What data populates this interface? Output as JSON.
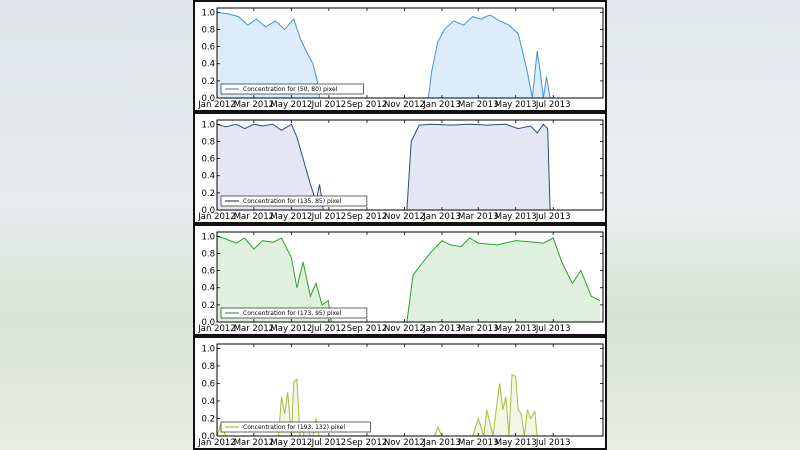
{
  "chart_data": [
    {
      "type": "area",
      "legend": "Concentration for (50, 80) pixel",
      "legend_placement": "bottom-left",
      "line_color": "#4a90d9",
      "fill_color": "#dcecfa",
      "ylim": [
        0,
        1.05
      ],
      "xlim": [
        "2012-01-01",
        "2013-09-20"
      ],
      "yticks": [
        "0.0",
        "0.2",
        "0.4",
        "0.6",
        "0.8",
        "1.0"
      ],
      "xticks": [
        "Jan 2012",
        "Mar 2012",
        "May 2012",
        "Jul 2012",
        "Sep 2012",
        "Nov 2012",
        "Jan 2013",
        "Mar 2013",
        "May 2013",
        "Jul 2013"
      ],
      "x": [
        "2012-01-01",
        "2012-01-20",
        "2012-02-05",
        "2012-02-20",
        "2012-03-05",
        "2012-03-20",
        "2012-04-05",
        "2012-04-20",
        "2012-05-05",
        "2012-05-15",
        "2012-05-25",
        "2012-06-05",
        "2012-06-12",
        "2012-06-16",
        "2012-12-10",
        "2012-12-15",
        "2012-12-25",
        "2013-01-05",
        "2013-01-20",
        "2013-02-05",
        "2013-02-20",
        "2013-03-05",
        "2013-03-20",
        "2013-04-05",
        "2013-04-20",
        "2013-05-05",
        "2013-05-12",
        "2013-05-20",
        "2013-05-28",
        "2013-06-05",
        "2013-06-10",
        "2013-06-15",
        "2013-06-20",
        "2013-06-26"
      ],
      "values": [
        1.0,
        0.98,
        0.95,
        0.85,
        0.92,
        0.83,
        0.9,
        0.8,
        0.92,
        0.7,
        0.55,
        0.4,
        0.2,
        0.0,
        0.0,
        0.3,
        0.65,
        0.8,
        0.9,
        0.85,
        0.95,
        0.92,
        0.97,
        0.9,
        0.85,
        0.75,
        0.55,
        0.3,
        0.0,
        0.55,
        0.3,
        0.0,
        0.25,
        0.0
      ]
    },
    {
      "type": "area",
      "legend": "Concentration for (135, 85) pixel",
      "legend_placement": "bottom-left",
      "line_color": "#2d4d7a",
      "fill_color": "#e4e7f3",
      "ylim": [
        0,
        1.05
      ],
      "xlim": [
        "2012-01-01",
        "2013-09-20"
      ],
      "yticks": [
        "0.0",
        "0.2",
        "0.4",
        "0.6",
        "0.8",
        "1.0"
      ],
      "xticks": [
        "Jan 2012",
        "Mar 2012",
        "May 2012",
        "Jul 2012",
        "Sep 2012",
        "Nov 2012",
        "Jan 2013",
        "Mar 2013",
        "May 2013",
        "Jul 2013"
      ],
      "x": [
        "2012-01-01",
        "2012-01-15",
        "2012-02-01",
        "2012-02-15",
        "2012-03-01",
        "2012-03-15",
        "2012-04-01",
        "2012-04-15",
        "2012-05-01",
        "2012-05-10",
        "2012-05-20",
        "2012-06-01",
        "2012-06-10",
        "2012-06-16",
        "2012-06-22",
        "2012-11-05",
        "2012-11-12",
        "2012-11-25",
        "2012-12-15",
        "2013-01-15",
        "2013-02-15",
        "2013-03-15",
        "2013-04-15",
        "2013-05-05",
        "2013-05-25",
        "2013-06-05",
        "2013-06-15",
        "2013-06-22",
        "2013-06-26"
      ],
      "values": [
        1.0,
        0.97,
        1.0,
        0.95,
        1.0,
        0.98,
        1.0,
        0.93,
        1.0,
        0.85,
        0.6,
        0.3,
        0.1,
        0.3,
        0.0,
        0.0,
        0.8,
        0.99,
        1.0,
        0.99,
        1.0,
        0.99,
        1.0,
        0.95,
        0.98,
        0.9,
        1.0,
        0.95,
        0.0
      ]
    },
    {
      "type": "area",
      "legend": "Concentration for (173, 95) pixel",
      "legend_placement": "bottom-left",
      "line_color": "#2ca02c",
      "fill_color": "#e0f0df",
      "ylim": [
        0,
        1.05
      ],
      "xlim": [
        "2012-01-01",
        "2013-09-20"
      ],
      "yticks": [
        "0.0",
        "0.2",
        "0.4",
        "0.6",
        "0.8",
        "1.0"
      ],
      "xticks": [
        "Jan 2012",
        "Mar 2012",
        "May 2012",
        "Jul 2012",
        "Sep 2012",
        "Nov 2012",
        "Jan 2013",
        "Mar 2013",
        "May 2013",
        "Jul 2013"
      ],
      "x": [
        "2012-01-01",
        "2012-01-15",
        "2012-02-01",
        "2012-02-15",
        "2012-03-01",
        "2012-03-15",
        "2012-04-01",
        "2012-04-15",
        "2012-05-01",
        "2012-05-10",
        "2012-05-20",
        "2012-06-01",
        "2012-06-10",
        "2012-06-20",
        "2012-06-30",
        "2012-07-05",
        "2012-11-05",
        "2012-11-15",
        "2012-12-01",
        "2012-12-15",
        "2013-01-01",
        "2013-01-15",
        "2013-02-01",
        "2013-02-15",
        "2013-03-01",
        "2013-04-01",
        "2013-05-01",
        "2013-06-01",
        "2013-06-15",
        "2013-07-01",
        "2013-07-15",
        "2013-08-01",
        "2013-08-15",
        "2013-09-01",
        "2013-09-15"
      ],
      "values": [
        1.0,
        0.97,
        0.92,
        0.98,
        0.85,
        0.95,
        0.93,
        0.98,
        0.75,
        0.4,
        0.7,
        0.3,
        0.45,
        0.2,
        0.25,
        0.0,
        0.0,
        0.55,
        0.7,
        0.82,
        0.95,
        0.9,
        0.88,
        0.98,
        0.92,
        0.9,
        0.95,
        0.93,
        0.92,
        0.98,
        0.7,
        0.45,
        0.6,
        0.3,
        0.25
      ]
    },
    {
      "type": "area",
      "legend": "Concentration for (193, 132) pixel",
      "legend_placement": "bottom-left",
      "line_color": "#a6bd3a",
      "fill_color": "#f3f6e3",
      "ylim": [
        0,
        1.05
      ],
      "xlim": [
        "2012-01-01",
        "2013-09-20"
      ],
      "yticks": [
        "0.0",
        "0.2",
        "0.4",
        "0.6",
        "0.8",
        "1.0"
      ],
      "xticks": [
        "Jan 2012",
        "Mar 2012",
        "May 2012",
        "Jul 2012",
        "Sep 2012",
        "Nov 2012",
        "Jan 2013",
        "Mar 2013",
        "May 2013",
        "Jul 2013"
      ],
      "x": [
        "2012-01-01",
        "2012-01-08",
        "2012-01-15",
        "2012-01-22",
        "2012-04-10",
        "2012-04-15",
        "2012-04-20",
        "2012-04-25",
        "2012-05-01",
        "2012-05-05",
        "2012-05-10",
        "2012-05-15",
        "2012-05-20",
        "2012-05-25",
        "2012-06-01",
        "2012-06-05",
        "2012-06-10",
        "2012-06-15",
        "2012-12-20",
        "2012-12-25",
        "2013-01-01",
        "2013-02-20",
        "2013-03-01",
        "2013-03-10",
        "2013-03-15",
        "2013-03-25",
        "2013-04-01",
        "2013-04-05",
        "2013-04-10",
        "2013-04-15",
        "2013-04-20",
        "2013-04-25",
        "2013-05-01",
        "2013-05-05",
        "2013-05-10",
        "2013-05-15",
        "2013-05-20",
        "2013-05-25",
        "2013-06-01",
        "2013-06-05",
        "2013-06-10",
        "2013-06-15"
      ],
      "values": [
        0.0,
        0.15,
        0.0,
        0.0,
        0.0,
        0.45,
        0.25,
        0.5,
        0.0,
        0.62,
        0.65,
        0.0,
        0.0,
        0.15,
        0.0,
        0.0,
        0.2,
        0.0,
        0.0,
        0.1,
        0.0,
        0.0,
        0.2,
        0.0,
        0.3,
        0.0,
        0.4,
        0.6,
        0.3,
        0.45,
        0.0,
        0.7,
        0.68,
        0.3,
        0.25,
        0.0,
        0.3,
        0.2,
        0.28,
        0.0,
        0.0,
        0.0
      ]
    }
  ]
}
